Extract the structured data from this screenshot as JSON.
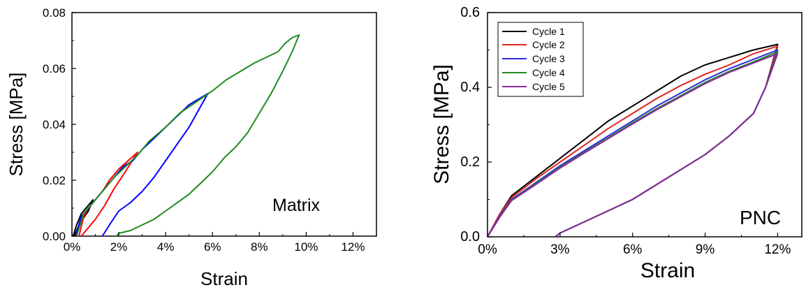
{
  "chart_data": [
    {
      "type": "line",
      "xlabel": "Strain",
      "ylabel": "Stress [MPa]",
      "annotation": "Matrix",
      "xlim": [
        0,
        13
      ],
      "ylim": [
        0,
        0.08
      ],
      "xticks": [
        0,
        2,
        4,
        6,
        8,
        10,
        12
      ],
      "xtick_labels": [
        "0%",
        "2%",
        "4%",
        "6%",
        "8%",
        "10%",
        "12%"
      ],
      "yticks": [
        0,
        0.02,
        0.04,
        0.06,
        0.08
      ],
      "ytick_labels": [
        "0.00",
        "0.02",
        "0.04",
        "0.06",
        "0.08"
      ],
      "grid": false,
      "series": [
        {
          "color": "#000000",
          "points": [
            [
              0.05,
              0
            ],
            [
              0.2,
              0.004
            ],
            [
              0.4,
              0.008
            ],
            [
              0.6,
              0.01
            ],
            [
              0.9,
              0.013
            ],
            [
              0.7,
              0.009
            ],
            [
              0.45,
              0.006
            ],
            [
              0.25,
              0.003
            ],
            [
              0.1,
              0
            ]
          ]
        },
        {
          "color": "#ff0000",
          "points": [
            [
              0.3,
              0
            ],
            [
              0.5,
              0.007
            ],
            [
              0.7,
              0.01
            ],
            [
              1.0,
              0.013
            ],
            [
              1.3,
              0.016
            ],
            [
              1.6,
              0.02
            ],
            [
              2.0,
              0.024
            ],
            [
              2.4,
              0.027
            ],
            [
              2.8,
              0.03
            ],
            [
              2.5,
              0.026
            ],
            [
              2.2,
              0.022
            ],
            [
              1.8,
              0.017
            ],
            [
              1.4,
              0.011
            ],
            [
              1.0,
              0.006
            ],
            [
              0.6,
              0.002
            ],
            [
              0.4,
              0
            ]
          ]
        },
        {
          "color": "#0000ff",
          "points": [
            [
              0.15,
              0
            ],
            [
              0.4,
              0.007
            ],
            [
              0.7,
              0.01
            ],
            [
              1.0,
              0.013
            ],
            [
              1.4,
              0.017
            ],
            [
              1.8,
              0.021
            ],
            [
              2.2,
              0.025
            ],
            [
              2.6,
              0.027
            ],
            [
              3.0,
              0.031
            ],
            [
              3.5,
              0.035
            ],
            [
              4.0,
              0.039
            ],
            [
              4.5,
              0.043
            ],
            [
              5.0,
              0.047
            ],
            [
              5.8,
              0.051
            ],
            [
              5.4,
              0.045
            ],
            [
              5.0,
              0.039
            ],
            [
              4.5,
              0.033
            ],
            [
              4.0,
              0.027
            ],
            [
              3.5,
              0.021
            ],
            [
              3.0,
              0.016
            ],
            [
              2.5,
              0.012
            ],
            [
              2.0,
              0.009
            ],
            [
              1.6,
              0.004
            ],
            [
              1.3,
              0
            ]
          ]
        },
        {
          "color": "#1f8b1f",
          "points": [
            [
              0.2,
              0
            ],
            [
              0.5,
              0.008
            ],
            [
              0.9,
              0.012
            ],
            [
              1.3,
              0.016
            ],
            [
              1.8,
              0.021
            ],
            [
              2.3,
              0.025
            ],
            [
              2.8,
              0.029
            ],
            [
              3.3,
              0.034
            ],
            [
              4.0,
              0.039
            ],
            [
              4.6,
              0.044
            ],
            [
              5.3,
              0.048
            ],
            [
              6.0,
              0.052
            ],
            [
              6.6,
              0.056
            ],
            [
              7.2,
              0.059
            ],
            [
              7.8,
              0.062
            ],
            [
              8.3,
              0.064
            ],
            [
              8.8,
              0.066
            ],
            [
              9.1,
              0.069
            ],
            [
              9.4,
              0.071
            ],
            [
              9.7,
              0.072
            ],
            [
              9.4,
              0.066
            ],
            [
              9.0,
              0.059
            ],
            [
              8.5,
              0.051
            ],
            [
              8.0,
              0.044
            ],
            [
              7.5,
              0.037
            ],
            [
              7.0,
              0.032
            ],
            [
              6.5,
              0.028
            ],
            [
              6.0,
              0.023
            ],
            [
              5.5,
              0.019
            ],
            [
              5.0,
              0.015
            ],
            [
              4.5,
              0.012
            ],
            [
              4.0,
              0.009
            ],
            [
              3.5,
              0.006
            ],
            [
              3.0,
              0.004
            ],
            [
              2.5,
              0.002
            ],
            [
              2.0,
              0.001
            ],
            [
              1.9,
              0
            ]
          ]
        }
      ]
    },
    {
      "type": "line",
      "xlabel": "Strain",
      "ylabel": "Stress [MPa]",
      "annotation": "PNC",
      "xlim": [
        0,
        13
      ],
      "ylim": [
        0,
        0.6
      ],
      "xticks": [
        0,
        3,
        6,
        9,
        12
      ],
      "xtick_labels": [
        "0%",
        "3%",
        "6%",
        "9%",
        "12%"
      ],
      "yticks": [
        0,
        0.2,
        0.4,
        0.6
      ],
      "ytick_labels": [
        "0.0",
        "0.2",
        "0.4",
        "0.6"
      ],
      "grid": false,
      "legend": "top-left",
      "series": [
        {
          "name": "Cycle 1",
          "color": "#000000",
          "points": [
            [
              0,
              0
            ],
            [
              0.5,
              0.06
            ],
            [
              1,
              0.11
            ],
            [
              2,
              0.16
            ],
            [
              3,
              0.21
            ],
            [
              4,
              0.26
            ],
            [
              5,
              0.31
            ],
            [
              6,
              0.35
            ],
            [
              7,
              0.39
            ],
            [
              8,
              0.43
            ],
            [
              9,
              0.46
            ],
            [
              10,
              0.48
            ],
            [
              11,
              0.5
            ],
            [
              12,
              0.515
            ],
            [
              11.5,
              0.4
            ],
            [
              11,
              0.33
            ],
            [
              10,
              0.27
            ],
            [
              9,
              0.22
            ],
            [
              8,
              0.18
            ],
            [
              7,
              0.14
            ],
            [
              6,
              0.1
            ],
            [
              5,
              0.07
            ],
            [
              4,
              0.04
            ],
            [
              3,
              0.01
            ],
            [
              2.8,
              0
            ]
          ]
        },
        {
          "name": "Cycle 2",
          "color": "#e0251e",
          "points": [
            [
              0,
              0
            ],
            [
              0.5,
              0.06
            ],
            [
              1,
              0.105
            ],
            [
              2,
              0.155
            ],
            [
              3,
              0.2
            ],
            [
              4,
              0.245
            ],
            [
              5,
              0.29
            ],
            [
              6,
              0.33
            ],
            [
              7,
              0.37
            ],
            [
              8,
              0.405
            ],
            [
              9,
              0.435
            ],
            [
              10,
              0.46
            ],
            [
              11,
              0.49
            ],
            [
              12,
              0.51
            ],
            [
              11.5,
              0.4
            ],
            [
              11,
              0.33
            ],
            [
              10,
              0.27
            ],
            [
              9,
              0.22
            ],
            [
              8,
              0.18
            ],
            [
              7,
              0.14
            ],
            [
              6,
              0.1
            ],
            [
              5,
              0.07
            ],
            [
              4,
              0.04
            ],
            [
              3,
              0.01
            ],
            [
              2.8,
              0
            ]
          ]
        },
        {
          "name": "Cycle 3",
          "color": "#2a2ad8",
          "points": [
            [
              0,
              0
            ],
            [
              0.5,
              0.055
            ],
            [
              1,
              0.1
            ],
            [
              2,
              0.145
            ],
            [
              3,
              0.19
            ],
            [
              4,
              0.23
            ],
            [
              5,
              0.27
            ],
            [
              6,
              0.31
            ],
            [
              7,
              0.35
            ],
            [
              8,
              0.385
            ],
            [
              9,
              0.42
            ],
            [
              10,
              0.45
            ],
            [
              11,
              0.475
            ],
            [
              12,
              0.5
            ],
            [
              11.5,
              0.4
            ],
            [
              11,
              0.33
            ],
            [
              10,
              0.27
            ],
            [
              9,
              0.22
            ],
            [
              8,
              0.18
            ],
            [
              7,
              0.14
            ],
            [
              6,
              0.1
            ],
            [
              5,
              0.07
            ],
            [
              4,
              0.04
            ],
            [
              3,
              0.01
            ],
            [
              2.8,
              0
            ]
          ]
        },
        {
          "name": "Cycle 4",
          "color": "#1f8b1f",
          "points": [
            [
              0,
              0
            ],
            [
              0.5,
              0.053
            ],
            [
              1,
              0.098
            ],
            [
              2,
              0.142
            ],
            [
              3,
              0.186
            ],
            [
              4,
              0.226
            ],
            [
              5,
              0.265
            ],
            [
              6,
              0.305
            ],
            [
              7,
              0.343
            ],
            [
              8,
              0.378
            ],
            [
              9,
              0.413
            ],
            [
              10,
              0.443
            ],
            [
              11,
              0.468
            ],
            [
              12,
              0.495
            ],
            [
              11.5,
              0.4
            ],
            [
              11,
              0.33
            ],
            [
              10,
              0.27
            ],
            [
              9,
              0.22
            ],
            [
              8,
              0.18
            ],
            [
              7,
              0.14
            ],
            [
              6,
              0.1
            ],
            [
              5,
              0.07
            ],
            [
              4,
              0.04
            ],
            [
              3,
              0.01
            ],
            [
              2.8,
              0
            ]
          ]
        },
        {
          "name": "Cycle 5",
          "color": "#8b2a9e",
          "points": [
            [
              0,
              0
            ],
            [
              0.5,
              0.052
            ],
            [
              1,
              0.097
            ],
            [
              2,
              0.14
            ],
            [
              3,
              0.184
            ],
            [
              4,
              0.224
            ],
            [
              5,
              0.263
            ],
            [
              6,
              0.302
            ],
            [
              7,
              0.34
            ],
            [
              8,
              0.375
            ],
            [
              9,
              0.41
            ],
            [
              10,
              0.44
            ],
            [
              11,
              0.465
            ],
            [
              12,
              0.49
            ],
            [
              11.5,
              0.4
            ],
            [
              11,
              0.33
            ],
            [
              10,
              0.27
            ],
            [
              9,
              0.22
            ],
            [
              8,
              0.18
            ],
            [
              7,
              0.14
            ],
            [
              6,
              0.1
            ],
            [
              5,
              0.07
            ],
            [
              4,
              0.04
            ],
            [
              3,
              0.01
            ],
            [
              2.8,
              0
            ]
          ]
        }
      ]
    }
  ]
}
